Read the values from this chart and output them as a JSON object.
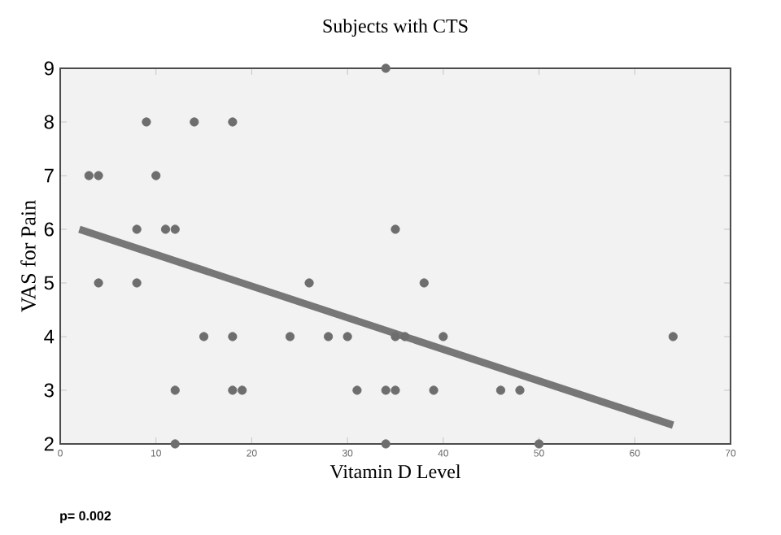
{
  "chart_data": {
    "type": "scatter",
    "title": "Subjects with CTS",
    "xlabel": "Vitamin D Level",
    "ylabel": "VAS  for  Pain",
    "xlim": [
      0,
      70
    ],
    "ylim": [
      2,
      9
    ],
    "xticks": [
      0,
      10,
      20,
      30,
      40,
      50,
      60,
      70
    ],
    "yticks": [
      2,
      3,
      4,
      5,
      6,
      7,
      8,
      9
    ],
    "grid": false,
    "series": [
      {
        "color": "#6e6e6e",
        "marker": "circle",
        "x": [
          3,
          4,
          4,
          8,
          8,
          9,
          10,
          11,
          12,
          12,
          12,
          14,
          15,
          18,
          18,
          18,
          19,
          24,
          26,
          28,
          30,
          31,
          34,
          34,
          34,
          35,
          35,
          35,
          36,
          38,
          39,
          40,
          46,
          48,
          50,
          64
        ],
        "values": [
          7,
          7,
          5,
          6,
          5,
          8,
          7,
          6,
          6,
          3,
          2,
          8,
          4,
          8,
          4,
          3,
          3,
          4,
          5,
          4,
          4,
          3,
          3,
          9,
          2,
          6,
          4,
          3,
          4,
          5,
          3,
          4,
          3,
          3,
          2,
          4
        ]
      },
      {
        "type": "line",
        "marker": "none",
        "color": "#777777",
        "x": [
          2,
          64
        ],
        "values": [
          6,
          2.35
        ]
      }
    ],
    "annotations": [
      "p= 0.002"
    ]
  }
}
